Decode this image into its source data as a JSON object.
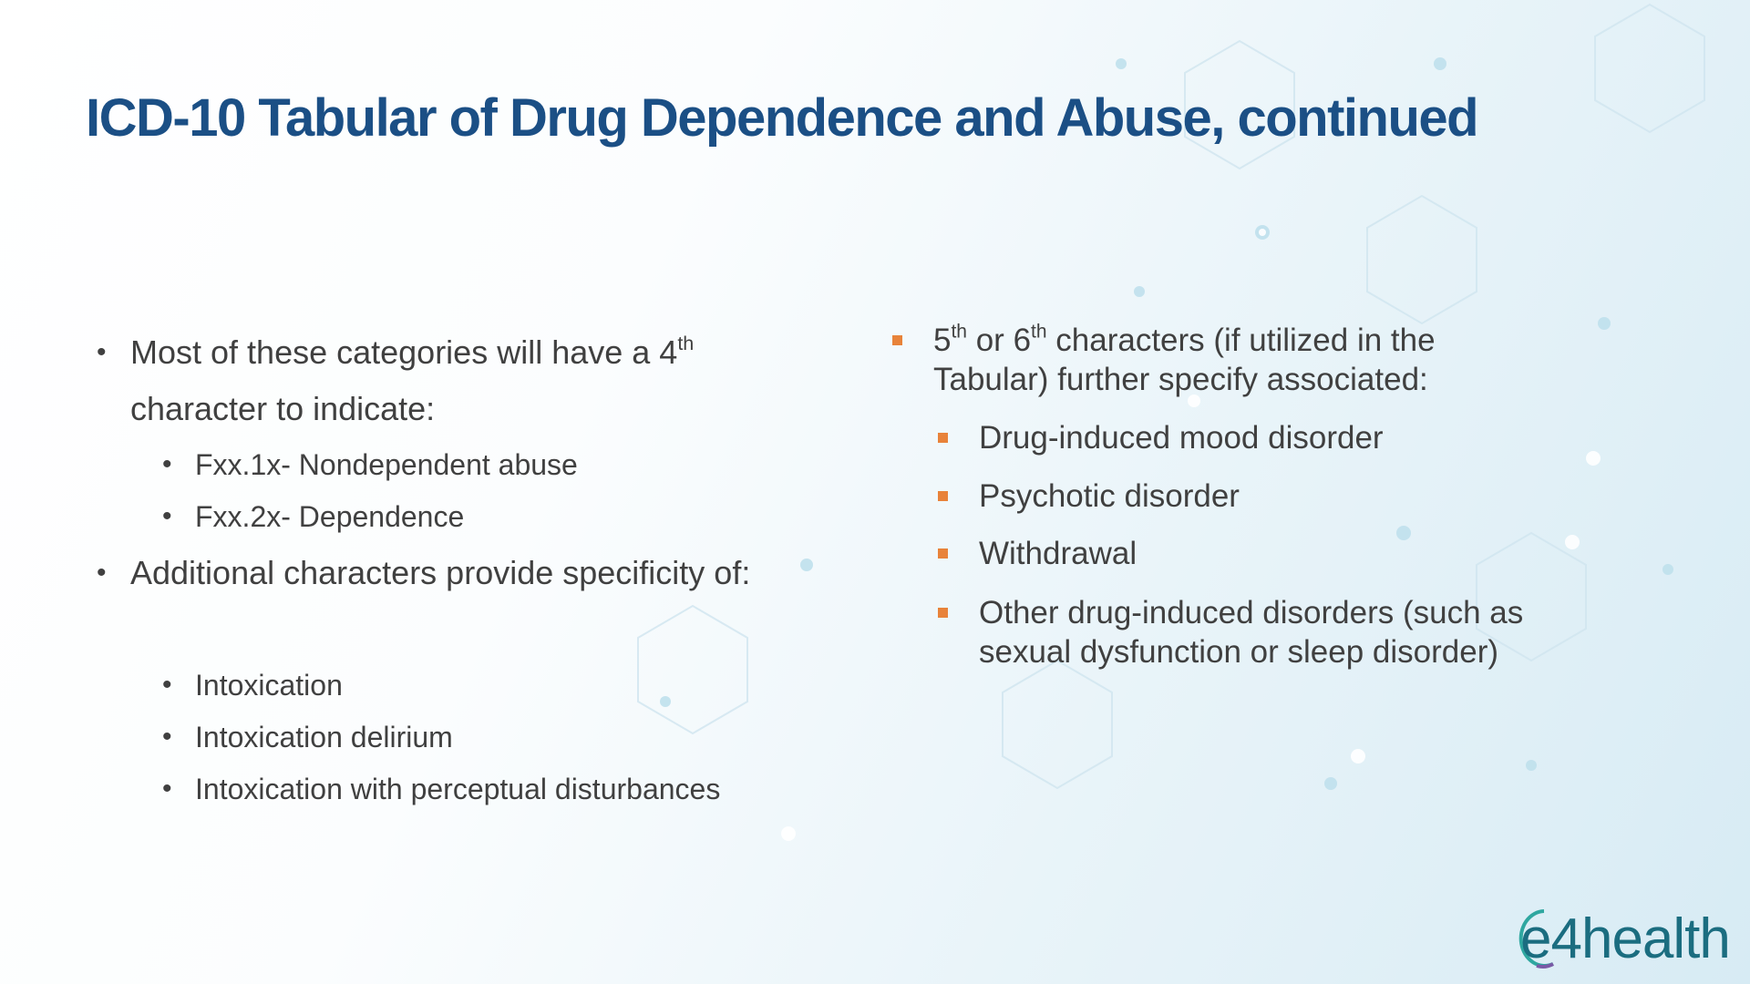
{
  "title": "ICD-10 Tabular of Drug Dependence and Abuse, continued",
  "left": [
    {
      "text_before": "Most of these categories will have a 4",
      "sup": "th",
      "text_after": "character to indicate:",
      "sub": [
        "Fxx.1x- Nondependent abuse",
        "Fxx.2x- Dependence"
      ]
    },
    {
      "text": "Additional characters provide specificity of:",
      "sub": [
        "Intoxication",
        "Intoxication delirium",
        "Intoxication with perceptual disturbances"
      ]
    }
  ],
  "right": [
    {
      "text_before": "5",
      "sup1": "th",
      "text_middle": "or 6",
      "sup2": "th",
      "text_after": "characters (if utilized in the Tabular) further specify associated:",
      "sub": [
        "Drug-induced mood disorder",
        "Psychotic disorder",
        "Withdrawal",
        "Other drug-induced disorders (such as sexual dysfunction or sleep disorder)"
      ]
    }
  ],
  "logo": "e4health"
}
